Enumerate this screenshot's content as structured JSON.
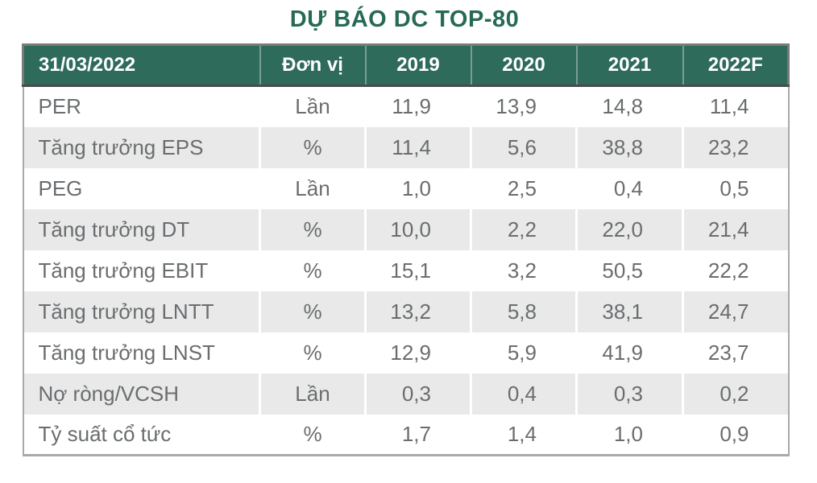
{
  "title": "DỰ BÁO DC TOP-80",
  "colors": {
    "title": "#266a56",
    "header_bg": "#2e6b5b",
    "header_text": "#ffffff",
    "body_text": "#6a6d6f",
    "row_alt_bg": "#e9e9e9",
    "row_bg": "#ffffff",
    "border_gray": "#a9a9a9",
    "border_dark": "#4b4b4b"
  },
  "table": {
    "headers": [
      "31/03/2022",
      "Đơn vị",
      "2019",
      "2020",
      "2021",
      "2022F"
    ],
    "rows": [
      {
        "label": "PER",
        "unit": "Lần",
        "values": [
          "11,9",
          "13,9",
          "14,8",
          "11,4"
        ]
      },
      {
        "label": "Tăng trưởng EPS",
        "unit": "%",
        "values": [
          "11,4",
          "5,6",
          "38,8",
          "23,2"
        ]
      },
      {
        "label": "PEG",
        "unit": "Lần",
        "values": [
          "1,0",
          "2,5",
          "0,4",
          "0,5"
        ]
      },
      {
        "label": "Tăng trưởng DT",
        "unit": "%",
        "values": [
          "10,0",
          "2,2",
          "22,0",
          "21,4"
        ]
      },
      {
        "label": "Tăng trưởng EBIT",
        "unit": "%",
        "values": [
          "15,1",
          "3,2",
          "50,5",
          "22,2"
        ]
      },
      {
        "label": "Tăng trưởng LNTT",
        "unit": "%",
        "values": [
          "13,2",
          "5,8",
          "38,1",
          "24,7"
        ]
      },
      {
        "label": "Tăng trưởng LNST",
        "unit": "%",
        "values": [
          "12,9",
          "5,9",
          "41,9",
          "23,7"
        ]
      },
      {
        "label": "Nợ ròng/VCSH",
        "unit": "Lần",
        "values": [
          "0,3",
          "0,4",
          "0,3",
          "0,2"
        ]
      },
      {
        "label": "Tỷ suất cổ tức",
        "unit": "%",
        "values": [
          "1,7",
          "1,4",
          "1,0",
          "0,9"
        ]
      }
    ]
  }
}
